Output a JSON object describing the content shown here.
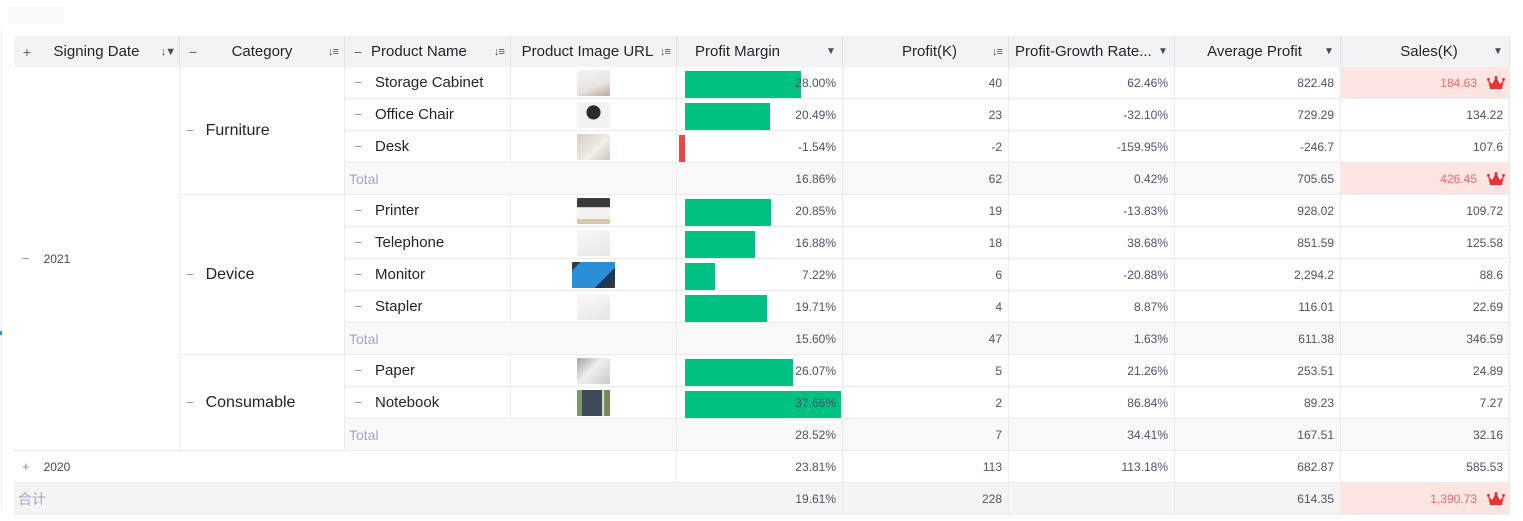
{
  "header": {
    "columns": [
      {
        "label": "Signing Date",
        "toggle": "+",
        "icon": "sort-filter-icon"
      },
      {
        "label": "Category",
        "toggle": "−",
        "icon": "sort-icon"
      },
      {
        "label": "Product Name",
        "toggle": "−",
        "icon": "sort-icon"
      },
      {
        "label": "Product Image URL",
        "icon": "sort-icon"
      },
      {
        "label": "Profit Margin",
        "icon": "dropdown-icon"
      },
      {
        "label": "Profit(K)",
        "icon": "sort-icon"
      },
      {
        "label": "Profit-Growth Rate...",
        "icon": "dropdown-icon"
      },
      {
        "label": "Average Profit",
        "icon": "dropdown-icon"
      },
      {
        "label": "Sales(K)",
        "icon": "dropdown-icon"
      }
    ]
  },
  "colors": {
    "bar_positive": "#00c184",
    "bar_negative": "#ef4444",
    "highlight_bg": "#fde5e2",
    "highlight_text": "#f0696b",
    "total_label": "#a3a6c8"
  },
  "years": [
    {
      "label": "2021",
      "toggle": "−",
      "categories": [
        {
          "label": "Furniture",
          "toggle": "−",
          "products": [
            {
              "name": "Storage Cabinet",
              "image": "storage-cabinet-thumbnail",
              "profit_margin": "28.00%",
              "margin_value": 28.0,
              "profit": "40",
              "growth": "62.46%",
              "avg_profit": "822.48",
              "sales": "184.63",
              "sales_highlight": true
            },
            {
              "name": "Office Chair",
              "image": "office-chair-thumbnail",
              "profit_margin": "20.49%",
              "margin_value": 20.49,
              "profit": "23",
              "growth": "-32.10%",
              "avg_profit": "729.29",
              "sales": "134.22",
              "sales_highlight": false
            },
            {
              "name": "Desk",
              "image": "desk-thumbnail",
              "profit_margin": "-1.54%",
              "margin_value": -1.54,
              "profit": "-2",
              "growth": "-159.95%",
              "avg_profit": "-246.7",
              "sales": "107.6",
              "sales_highlight": false
            }
          ],
          "total": {
            "label": "Total",
            "profit_margin": "16.86%",
            "profit": "62",
            "growth": "0.42%",
            "avg_profit": "705.65",
            "sales": "426.45",
            "sales_highlight": true
          }
        },
        {
          "label": "Device",
          "toggle": "−",
          "products": [
            {
              "name": "Printer",
              "image": "printer-thumbnail",
              "profit_margin": "20.85%",
              "margin_value": 20.85,
              "profit": "19",
              "growth": "-13.83%",
              "avg_profit": "928.02",
              "sales": "109.72",
              "sales_highlight": false
            },
            {
              "name": "Telephone",
              "image": "telephone-thumbnail",
              "profit_margin": "16.88%",
              "margin_value": 16.88,
              "profit": "18",
              "growth": "38.68%",
              "avg_profit": "851.59",
              "sales": "125.58",
              "sales_highlight": false
            },
            {
              "name": "Monitor",
              "image": "monitor-thumbnail",
              "profit_margin": "7.22%",
              "margin_value": 7.22,
              "profit": "6",
              "growth": "-20.88%",
              "avg_profit": "2,294.2",
              "sales": "88.6",
              "sales_highlight": false
            },
            {
              "name": "Stapler",
              "image": "stapler-thumbnail",
              "profit_margin": "19.71%",
              "margin_value": 19.71,
              "profit": "4",
              "growth": "8.87%",
              "avg_profit": "116.01",
              "sales": "22.69",
              "sales_highlight": false
            }
          ],
          "total": {
            "label": "Total",
            "profit_margin": "15.60%",
            "profit": "47",
            "growth": "1.63%",
            "avg_profit": "611.38",
            "sales": "346.59",
            "sales_highlight": false
          }
        },
        {
          "label": "Consumable",
          "toggle": "−",
          "products": [
            {
              "name": "Paper",
              "image": "paper-thumbnail",
              "profit_margin": "26.07%",
              "margin_value": 26.07,
              "profit": "5",
              "growth": "21.26%",
              "avg_profit": "253.51",
              "sales": "24.89",
              "sales_highlight": false
            },
            {
              "name": "Notebook",
              "image": "notebook-thumbnail",
              "profit_margin": "37.66%",
              "margin_value": 37.66,
              "profit": "2",
              "growth": "86.84%",
              "avg_profit": "89.23",
              "sales": "7.27",
              "sales_highlight": false
            }
          ],
          "total": {
            "label": "Total",
            "profit_margin": "28.52%",
            "profit": "7",
            "growth": "34.41%",
            "avg_profit": "167.51",
            "sales": "32.16",
            "sales_highlight": false
          }
        }
      ]
    },
    {
      "label": "2020",
      "toggle": "+",
      "collapsed": true,
      "summary": {
        "profit_margin": "23.81%",
        "profit": "113",
        "growth": "113.18%",
        "avg_profit": "682.87",
        "sales": "585.53",
        "sales_highlight": false
      }
    }
  ],
  "grand_total": {
    "label": "合计",
    "profit_margin": "19.61%",
    "profit": "228",
    "growth": "",
    "avg_profit": "614.35",
    "sales": "1,390.73",
    "sales_highlight": true
  }
}
